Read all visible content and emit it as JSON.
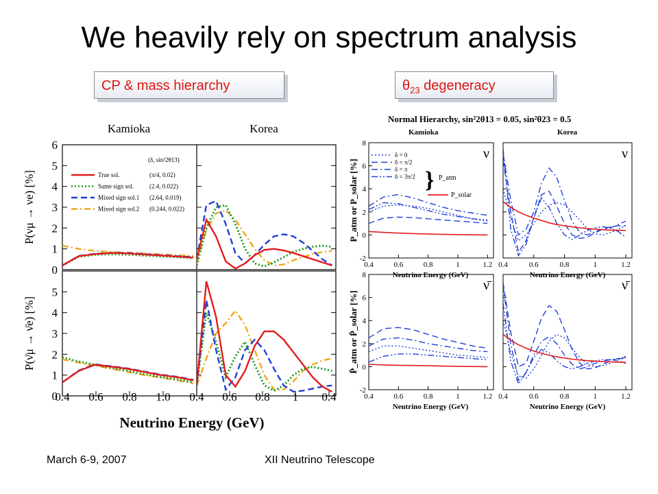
{
  "slide": {
    "title": "We heavily rely on spectrum analysis",
    "callout_left": "CP & mass hierarchy",
    "callout_right_symbol": "θ",
    "callout_right_sub": "23",
    "callout_right_text": " degeneracy",
    "footer_date": "March 6-9, 2007",
    "footer_conference": "XII Neutrino Telescope"
  },
  "chart_data": [
    {
      "type": "line",
      "panel_titles": [
        "Kamioka",
        "Korea"
      ],
      "xlabel": "Neutrino Energy (GeV)",
      "x_ticks": [
        "0.4",
        "0.6",
        "0.8",
        "1.0",
        "0.4",
        "0.6",
        "0.8",
        "1",
        "0.4"
      ],
      "legend_header": "(δ, sin²2θ13)",
      "legend": [
        {
          "name": "True sol.",
          "value": "(π/4, 0.02)",
          "color": "#e31b1b",
          "dash": "solid"
        },
        {
          "name": "Same sign sol.",
          "value": "(2.4, 0.022)",
          "color": "#1a9a1a",
          "dash": "dotted"
        },
        {
          "name": "Mixed sign sol.1",
          "value": "(2.64, 0.019)",
          "color": "#1f3fd8",
          "dash": "dashed"
        },
        {
          "name": "Mixed sign sol.2",
          "value": "(0.244, 0.022)",
          "color": "#f0a51c",
          "dash": "dashdot"
        }
      ],
      "rows": [
        {
          "ylabel": "P(νμ → νe) [%]",
          "ylim": [
            0,
            6
          ],
          "y_ticks": [
            "0",
            "1",
            "2",
            "3",
            "4",
            "5",
            "6"
          ],
          "panels": [
            {
              "x": [
                0.4,
                0.5,
                0.6,
                0.7,
                0.8,
                0.9,
                1.0,
                1.1,
                1.2
              ],
              "series": [
                [
                  0.2,
                  0.65,
                  0.75,
                  0.8,
                  0.78,
                  0.73,
                  0.68,
                  0.63,
                  0.58
                ],
                [
                  0.2,
                  0.62,
                  0.72,
                  0.74,
                  0.72,
                  0.68,
                  0.64,
                  0.6,
                  0.56
                ],
                [
                  0.2,
                  0.66,
                  0.76,
                  0.81,
                  0.8,
                  0.75,
                  0.7,
                  0.65,
                  0.6
                ],
                [
                  1.15,
                  1.0,
                  0.9,
                  0.85,
                  0.82,
                  0.78,
                  0.74,
                  0.7,
                  0.66
                ]
              ]
            },
            {
              "x": [
                0.4,
                0.45,
                0.5,
                0.55,
                0.6,
                0.65,
                0.7,
                0.75,
                0.8,
                0.85,
                0.9,
                0.95,
                1.0,
                1.05,
                1.1
              ],
              "series": [
                [
                  0.5,
                  2.4,
                  1.6,
                  0.4,
                  0.05,
                  0.3,
                  0.7,
                  0.95,
                  1.0,
                  0.92,
                  0.8,
                  0.65,
                  0.5,
                  0.35,
                  0.2
                ],
                [
                  0.2,
                  2.0,
                  3.0,
                  3.1,
                  2.2,
                  1.0,
                  0.3,
                  0.15,
                  0.35,
                  0.6,
                  0.85,
                  1.0,
                  1.1,
                  1.15,
                  1.1
                ],
                [
                  0.5,
                  3.1,
                  3.3,
                  2.2,
                  0.8,
                  0.3,
                  0.7,
                  1.2,
                  1.6,
                  1.7,
                  1.6,
                  1.3,
                  0.9,
                  0.5,
                  0.2
                ],
                [
                  0.3,
                  1.9,
                  2.7,
                  2.85,
                  2.4,
                  1.7,
                  1.0,
                  0.45,
                  0.2,
                  0.25,
                  0.45,
                  0.6,
                  0.75,
                  0.85,
                  0.9
                ]
              ]
            }
          ]
        },
        {
          "ylabel": "P(ν̄μ → ν̄e) [%]",
          "ylim": [
            0,
            6
          ],
          "y_ticks": [
            "0",
            "1",
            "2",
            "3",
            "4",
            "5",
            "6"
          ],
          "panels": [
            {
              "x": [
                0.4,
                0.5,
                0.6,
                0.7,
                0.8,
                0.9,
                1.0,
                1.1,
                1.2
              ],
              "series": [
                [
                  0.65,
                  1.2,
                  1.5,
                  1.4,
                  1.3,
                  1.15,
                  1.0,
                  0.9,
                  0.75
                ],
                [
                  1.85,
                  1.65,
                  1.5,
                  1.35,
                  1.2,
                  1.05,
                  0.9,
                  0.8,
                  0.65
                ],
                [
                  0.65,
                  1.22,
                  1.52,
                  1.42,
                  1.32,
                  1.17,
                  1.02,
                  0.92,
                  0.77
                ],
                [
                  1.75,
                  1.6,
                  1.45,
                  1.3,
                  1.15,
                  1.0,
                  0.88,
                  0.75,
                  0.6
                ]
              ]
            },
            {
              "x": [
                0.4,
                0.45,
                0.5,
                0.55,
                0.6,
                0.65,
                0.7,
                0.75,
                0.8,
                0.85,
                0.9,
                0.95,
                1.0,
                1.05,
                1.1
              ],
              "series": [
                [
                  0.5,
                  5.5,
                  3.8,
                  1.0,
                  0.45,
                  1.2,
                  2.4,
                  3.1,
                  3.1,
                  2.7,
                  2.1,
                  1.5,
                  0.9,
                  0.45,
                  0.2
                ],
                [
                  0.5,
                  4.0,
                  2.6,
                  0.9,
                  1.9,
                  2.6,
                  1.5,
                  0.5,
                  0.25,
                  0.5,
                  1.0,
                  1.3,
                  1.4,
                  1.3,
                  1.2
                ],
                [
                  0.5,
                  4.6,
                  2.2,
                  0.3,
                  0.9,
                  2.2,
                  2.7,
                  2.2,
                  1.3,
                  0.5,
                  0.2,
                  0.25,
                  0.35,
                  0.45,
                  0.5
                ],
                [
                  0.5,
                  1.8,
                  3.0,
                  3.5,
                  4.1,
                  3.4,
                  2.2,
                  1.0,
                  0.3,
                  0.3,
                  0.7,
                  1.2,
                  1.5,
                  1.7,
                  1.8
                ]
              ]
            }
          ]
        }
      ]
    },
    {
      "type": "line",
      "title": "Normal Hierarchy, sin²2θ13 = 0.05, sin²θ23 = 0.5",
      "panel_titles": [
        "Kamioka",
        "Korea"
      ],
      "xlabel": "Neutrino Energy (GeV)",
      "x_ticks": [
        "0.4",
        "0.6",
        "0.8",
        "1",
        "1.2"
      ],
      "legend": [
        {
          "name": "δ = 0",
          "color": "#1f3fd8",
          "dash": "dotted"
        },
        {
          "name": "δ = π/2",
          "color": "#1f3fd8",
          "dash": "dashed"
        },
        {
          "name": "δ = π",
          "color": "#1f3fd8",
          "dash": "dashdot"
        },
        {
          "name": "δ = 3π/2",
          "color": "#1f3fd8",
          "dash": "dashdotdot"
        }
      ],
      "legend_group_label": "P_atm",
      "legend_solar": {
        "name": "P_solar",
        "color": "#e31b1b"
      },
      "rows": [
        {
          "ylabel": "P_atm or P_solar [%]",
          "nu_label": "ν",
          "ylim": [
            -2,
            8
          ],
          "y_ticks": [
            "-2",
            "0",
            "2",
            "4",
            "6",
            "8"
          ],
          "panels": [
            {
              "x": [
                0.4,
                0.5,
                0.6,
                0.7,
                0.8,
                0.9,
                1.0,
                1.1,
                1.2
              ],
              "solar": [
                0.3,
                0.22,
                0.16,
                0.12,
                0.08,
                0.05,
                0.03,
                0.01,
                0.0
              ],
              "series": [
                [
                  2.0,
                  2.5,
                  2.6,
                  2.5,
                  2.3,
                  2.0,
                  1.7,
                  1.4,
                  1.2
                ],
                [
                  1.0,
                  1.45,
                  1.55,
                  1.5,
                  1.4,
                  1.3,
                  1.2,
                  1.1,
                  1.0
                ],
                [
                  2.5,
                  3.3,
                  3.5,
                  3.2,
                  2.8,
                  2.4,
                  2.1,
                  1.9,
                  1.7
                ],
                [
                  2.2,
                  2.8,
                  2.7,
                  2.4,
                  2.1,
                  1.8,
                  1.6,
                  1.4,
                  1.3
                ]
              ]
            },
            {
              "x": [
                0.4,
                0.45,
                0.5,
                0.55,
                0.6,
                0.65,
                0.7,
                0.75,
                0.8,
                0.85,
                0.9,
                0.95,
                1.0,
                1.05,
                1.1,
                1.15,
                1.2
              ],
              "solar": [
                2.9,
                2.4,
                2.0,
                1.7,
                1.45,
                1.25,
                1.05,
                0.9,
                0.8,
                0.7,
                0.62,
                0.55,
                0.5,
                0.45,
                0.42,
                0.4,
                0.38
              ],
              "series": [
                [
                  4.0,
                  1.5,
                  -0.5,
                  0.0,
                  1.0,
                  2.0,
                  2.6,
                  2.8,
                  2.6,
                  2.0,
                  1.3,
                  0.5,
                  0.1,
                  0.0,
                  0.2,
                  0.5,
                  0.8
                ],
                [
                  6.5,
                  2.0,
                  -1.5,
                  -0.5,
                  1.5,
                  3.5,
                  3.8,
                  2.5,
                  1.0,
                  0.0,
                  -0.3,
                  -0.2,
                  0.2,
                  0.5,
                  0.7,
                  0.8,
                  0.8
                ],
                [
                  7.0,
                  3.0,
                  0.0,
                  0.5,
                  2.0,
                  4.5,
                  5.8,
                  5.0,
                  3.0,
                  1.2,
                  0.2,
                  0.0,
                  0.3,
                  0.5,
                  0.6,
                  0.9,
                  1.2
                ],
                [
                  7.5,
                  0.5,
                  -1.8,
                  -0.8,
                  1.5,
                  3.2,
                  2.4,
                  1.0,
                  0.0,
                  -0.4,
                  0.0,
                  0.4,
                  0.6,
                  0.7,
                  0.6,
                  0.3,
                  -0.2
                ]
              ]
            }
          ]
        },
        {
          "ylabel": "P̄_atm or P̄_solar [%]",
          "nu_label": "ν̄",
          "ylim": [
            -2,
            8
          ],
          "y_ticks": [
            "-2",
            "0",
            "2",
            "4",
            "6",
            "8"
          ],
          "panels": [
            {
              "x": [
                0.4,
                0.5,
                0.6,
                0.7,
                0.8,
                0.9,
                1.0,
                1.1,
                1.2
              ],
              "solar": [
                0.2,
                0.15,
                0.12,
                0.1,
                0.08,
                0.05,
                0.03,
                0.01,
                0.0
              ],
              "series": [
                [
                  1.3,
                  1.8,
                  1.8,
                  1.6,
                  1.4,
                  1.2,
                  1.0,
                  0.9,
                  0.8
                ],
                [
                  2.5,
                  3.3,
                  3.4,
                  3.2,
                  2.8,
                  2.4,
                  2.1,
                  1.8,
                  1.6
                ],
                [
                  1.8,
                  2.4,
                  2.5,
                  2.3,
                  2.0,
                  1.8,
                  1.6,
                  1.4,
                  1.3
                ],
                [
                  0.4,
                  0.9,
                  1.1,
                  1.1,
                  1.0,
                  0.9,
                  0.8,
                  0.7,
                  0.6
                ]
              ]
            },
            {
              "x": [
                0.4,
                0.45,
                0.5,
                0.55,
                0.6,
                0.65,
                0.7,
                0.75,
                0.8,
                0.85,
                0.9,
                0.95,
                1.0,
                1.05,
                1.1,
                1.15,
                1.2
              ],
              "solar": [
                2.8,
                2.3,
                1.9,
                1.6,
                1.35,
                1.15,
                1.0,
                0.85,
                0.75,
                0.65,
                0.58,
                0.52,
                0.48,
                0.44,
                0.41,
                0.39,
                0.37
              ],
              "series": [
                [
                  4.0,
                  1.2,
                  -0.8,
                  -1.0,
                  -0.2,
                  1.0,
                  2.2,
                  2.8,
                  2.5,
                  1.6,
                  0.8,
                  0.2,
                  0.0,
                  0.1,
                  0.3,
                  0.6,
                  0.9
                ],
                [
                  7.3,
                  3.0,
                  0.0,
                  0.3,
                  2.2,
                  4.2,
                  5.3,
                  4.8,
                  3.2,
                  1.5,
                  0.3,
                  -0.2,
                  -0.1,
                  0.2,
                  0.5,
                  0.7,
                  0.8
                ],
                [
                  7.0,
                  2.0,
                  -1.2,
                  -0.5,
                  1.0,
                  2.2,
                  2.6,
                  2.0,
                  1.0,
                  0.2,
                  -0.2,
                  0.0,
                  0.3,
                  0.5,
                  0.6,
                  0.7,
                  0.7
                ],
                [
                  5.5,
                  0.5,
                  -1.5,
                  -0.5,
                  0.8,
                  1.5,
                  1.2,
                  0.5,
                  0.0,
                  -0.2,
                  0.0,
                  0.3,
                  0.5,
                  0.6,
                  0.6,
                  0.5,
                  0.3
                ]
              ]
            }
          ]
        }
      ]
    }
  ]
}
